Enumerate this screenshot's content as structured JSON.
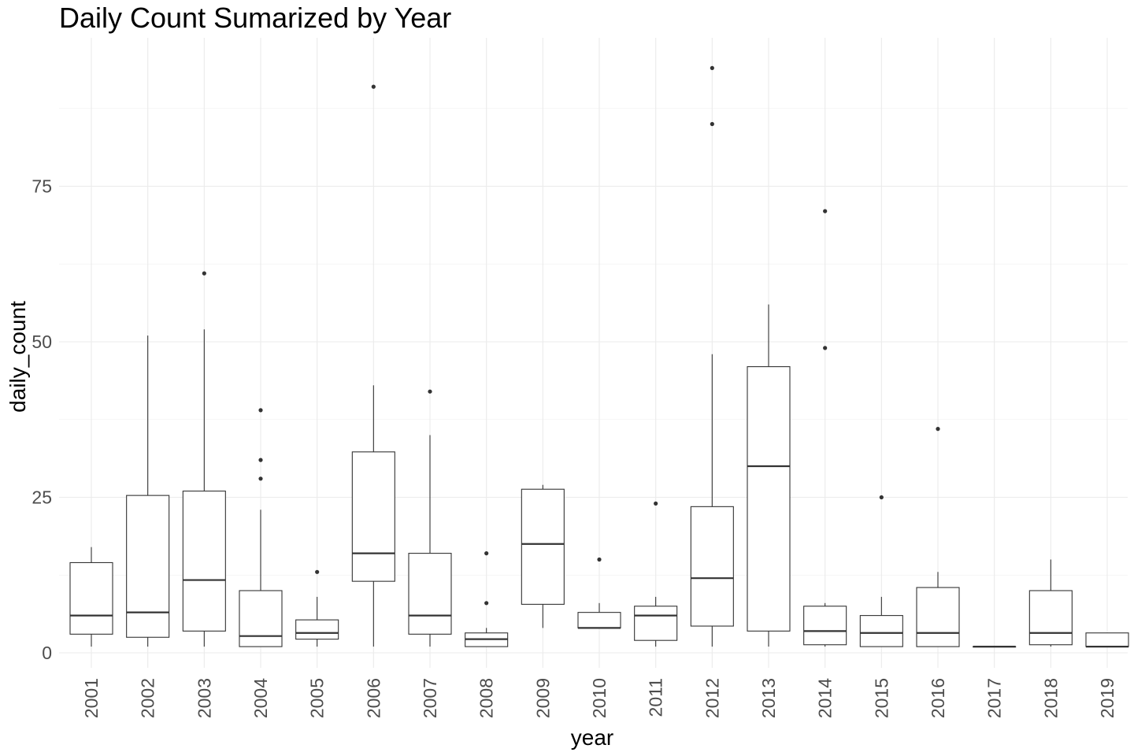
{
  "chart_data": {
    "type": "boxplot",
    "title": "Daily Count Sumarized by Year",
    "xlabel": "year",
    "ylabel": "daily_count",
    "ylim": [
      -2,
      99
    ],
    "yticks": [
      0,
      25,
      50,
      75
    ],
    "grid": true,
    "categories": [
      "2001",
      "2002",
      "2003",
      "2004",
      "2005",
      "2006",
      "2007",
      "2008",
      "2009",
      "2010",
      "2011",
      "2012",
      "2013",
      "2014",
      "2015",
      "2016",
      "2017",
      "2018",
      "2019"
    ],
    "boxes": [
      {
        "year": "2001",
        "whisker_low": 1,
        "q1": 3,
        "median": 6,
        "q3": 14.5,
        "whisker_high": 17,
        "outliers": []
      },
      {
        "year": "2002",
        "whisker_low": 1,
        "q1": 2.5,
        "median": 6.5,
        "q3": 25.3,
        "whisker_high": 51,
        "outliers": []
      },
      {
        "year": "2003",
        "whisker_low": 1,
        "q1": 3.5,
        "median": 11.7,
        "q3": 26,
        "whisker_high": 52,
        "outliers": [
          61
        ]
      },
      {
        "year": "2004",
        "whisker_low": 1,
        "q1": 1,
        "median": 2.7,
        "q3": 10,
        "whisker_high": 23,
        "outliers": [
          28,
          31,
          39
        ]
      },
      {
        "year": "2005",
        "whisker_low": 1,
        "q1": 2.2,
        "median": 3.2,
        "q3": 5.3,
        "whisker_high": 9,
        "outliers": [
          13
        ]
      },
      {
        "year": "2006",
        "whisker_low": 1,
        "q1": 11.5,
        "median": 16,
        "q3": 32.3,
        "whisker_high": 43,
        "outliers": [
          91
        ]
      },
      {
        "year": "2007",
        "whisker_low": 1,
        "q1": 3,
        "median": 6,
        "q3": 16,
        "whisker_high": 35,
        "outliers": [
          42
        ]
      },
      {
        "year": "2008",
        "whisker_low": 1,
        "q1": 1,
        "median": 2.2,
        "q3": 3.2,
        "whisker_high": 4,
        "outliers": [
          8,
          16
        ]
      },
      {
        "year": "2009",
        "whisker_low": 4,
        "q1": 7.8,
        "median": 17.5,
        "q3": 26.3,
        "whisker_high": 27,
        "outliers": []
      },
      {
        "year": "2010",
        "whisker_low": 4,
        "q1": 4,
        "median": 4,
        "q3": 6.5,
        "whisker_high": 8,
        "outliers": [
          15
        ]
      },
      {
        "year": "2011",
        "whisker_low": 1,
        "q1": 2,
        "median": 6,
        "q3": 7.5,
        "whisker_high": 9,
        "outliers": [
          24
        ]
      },
      {
        "year": "2012",
        "whisker_low": 1,
        "q1": 4.3,
        "median": 12,
        "q3": 23.5,
        "whisker_high": 48,
        "outliers": [
          85,
          94
        ]
      },
      {
        "year": "2013",
        "whisker_low": 1,
        "q1": 3.5,
        "median": 30,
        "q3": 46,
        "whisker_high": 56,
        "outliers": []
      },
      {
        "year": "2014",
        "whisker_low": 1,
        "q1": 1.3,
        "median": 3.5,
        "q3": 7.5,
        "whisker_high": 8,
        "outliers": [
          49,
          71
        ]
      },
      {
        "year": "2015",
        "whisker_low": 1,
        "q1": 1,
        "median": 3.2,
        "q3": 6,
        "whisker_high": 9,
        "outliers": [
          25
        ]
      },
      {
        "year": "2016",
        "whisker_low": 1,
        "q1": 1,
        "median": 3.2,
        "q3": 10.5,
        "whisker_high": 13,
        "outliers": [
          36
        ]
      },
      {
        "year": "2017",
        "whisker_low": 1,
        "q1": 1,
        "median": 1,
        "q3": 1,
        "whisker_high": 1,
        "outliers": []
      },
      {
        "year": "2018",
        "whisker_low": 1,
        "q1": 1.3,
        "median": 3.2,
        "q3": 10,
        "whisker_high": 15,
        "outliers": []
      },
      {
        "year": "2019",
        "whisker_low": 1,
        "q1": 1,
        "median": 1,
        "q3": 3.2,
        "whisker_high": 3.2,
        "outliers": []
      }
    ],
    "colors": {
      "box_stroke": "#333333",
      "box_fill": "#ffffff",
      "grid": "#ebebeb",
      "tick_text": "#4d4d4d"
    }
  }
}
